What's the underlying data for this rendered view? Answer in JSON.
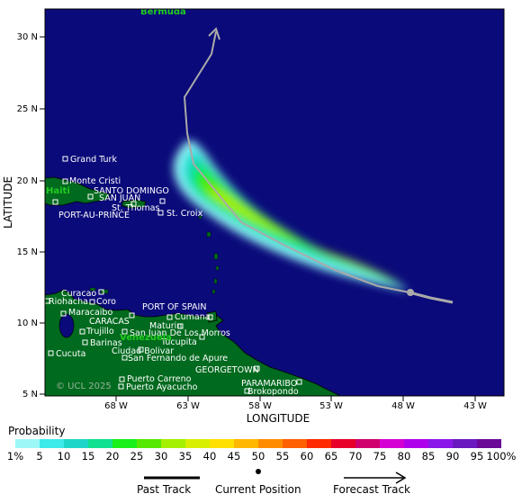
{
  "map": {
    "x_axis_title": "LONGITUDE",
    "y_axis_title": "LATITUDE",
    "lon_ticks": [
      "68 W",
      "63 W",
      "58 W",
      "53 W",
      "48 W",
      "43 W"
    ],
    "lat_ticks": [
      "30 N",
      "25 N",
      "20 N",
      "15 N",
      "10 N",
      "5 N"
    ],
    "watermark": "© UCL 2025",
    "colors": {
      "ocean": "#0a0a7a",
      "land": "#006a1e",
      "track": "#aaaaaa",
      "country_label": "#22cc22"
    },
    "countries": [
      {
        "id": "bermuda",
        "label": "Bermuda"
      },
      {
        "id": "haiti",
        "label": "Haiti"
      },
      {
        "id": "venezuela",
        "label": "Venezuela"
      }
    ],
    "places": [
      {
        "id": "grand-turk",
        "label": "Grand Turk"
      },
      {
        "id": "monte-cristi",
        "label": "Monte Cristi"
      },
      {
        "id": "santo-domingo",
        "label": "SANTO DOMINGO"
      },
      {
        "id": "san-juan",
        "label": "SAN JUAN"
      },
      {
        "id": "st-thomas",
        "label": "St. Thomas"
      },
      {
        "id": "port-au-prince",
        "label": "PORT-AU-PRINCE"
      },
      {
        "id": "st-croix",
        "label": "St. Croix"
      },
      {
        "id": "curacao",
        "label": "Curacao"
      },
      {
        "id": "riohacha",
        "label": "Riohacha"
      },
      {
        "id": "coro",
        "label": "Coro"
      },
      {
        "id": "maracaibo",
        "label": "Maracaibo"
      },
      {
        "id": "port-of-spain",
        "label": "PORT OF SPAIN"
      },
      {
        "id": "caracas",
        "label": "CARACAS"
      },
      {
        "id": "cumana",
        "label": "Cumana"
      },
      {
        "id": "maturin",
        "label": "Maturin"
      },
      {
        "id": "trujillo",
        "label": "Trujillo"
      },
      {
        "id": "san-juan-de-los-morros",
        "label": "San Juan De Los Morros"
      },
      {
        "id": "barinas",
        "label": "Barinas"
      },
      {
        "id": "tucupita",
        "label": "Tucupita"
      },
      {
        "id": "ciudad-bolivar",
        "label": "Ciudad Bolivar"
      },
      {
        "id": "cucuta",
        "label": "Cucuta"
      },
      {
        "id": "san-fernando-de-apure",
        "label": "San Fernando de Apure"
      },
      {
        "id": "georgetown",
        "label": "GEORGETOWN"
      },
      {
        "id": "puerto-carreno",
        "label": "Puerto Carreno"
      },
      {
        "id": "paramaribo",
        "label": "PARAMARIBO"
      },
      {
        "id": "puerto-ayacucho",
        "label": "Puerto Ayacucho"
      },
      {
        "id": "brokopondo",
        "label": "Brokopondo"
      }
    ]
  },
  "legend": {
    "title": "Probability",
    "levels": [
      "1%",
      "5",
      "10",
      "15",
      "20",
      "25",
      "30",
      "35",
      "40",
      "45",
      "50",
      "55",
      "60",
      "65",
      "70",
      "75",
      "80",
      "85",
      "90",
      "95",
      "100%"
    ],
    "colors": [
      "#9ef7f7",
      "#3feaea",
      "#1ed6c8",
      "#10e090",
      "#19f019",
      "#56e800",
      "#a4f000",
      "#d8f000",
      "#ffe000",
      "#ffb800",
      "#ff8c00",
      "#ff6000",
      "#ff2a00",
      "#e8002a",
      "#d0006e",
      "#d400d4",
      "#ae00ea",
      "#8a18e8",
      "#6a18c0",
      "#6a0898"
    ],
    "past_track_label": "Past Track",
    "current_position_label": "Current Position",
    "forecast_track_label": "Forecast Track"
  }
}
